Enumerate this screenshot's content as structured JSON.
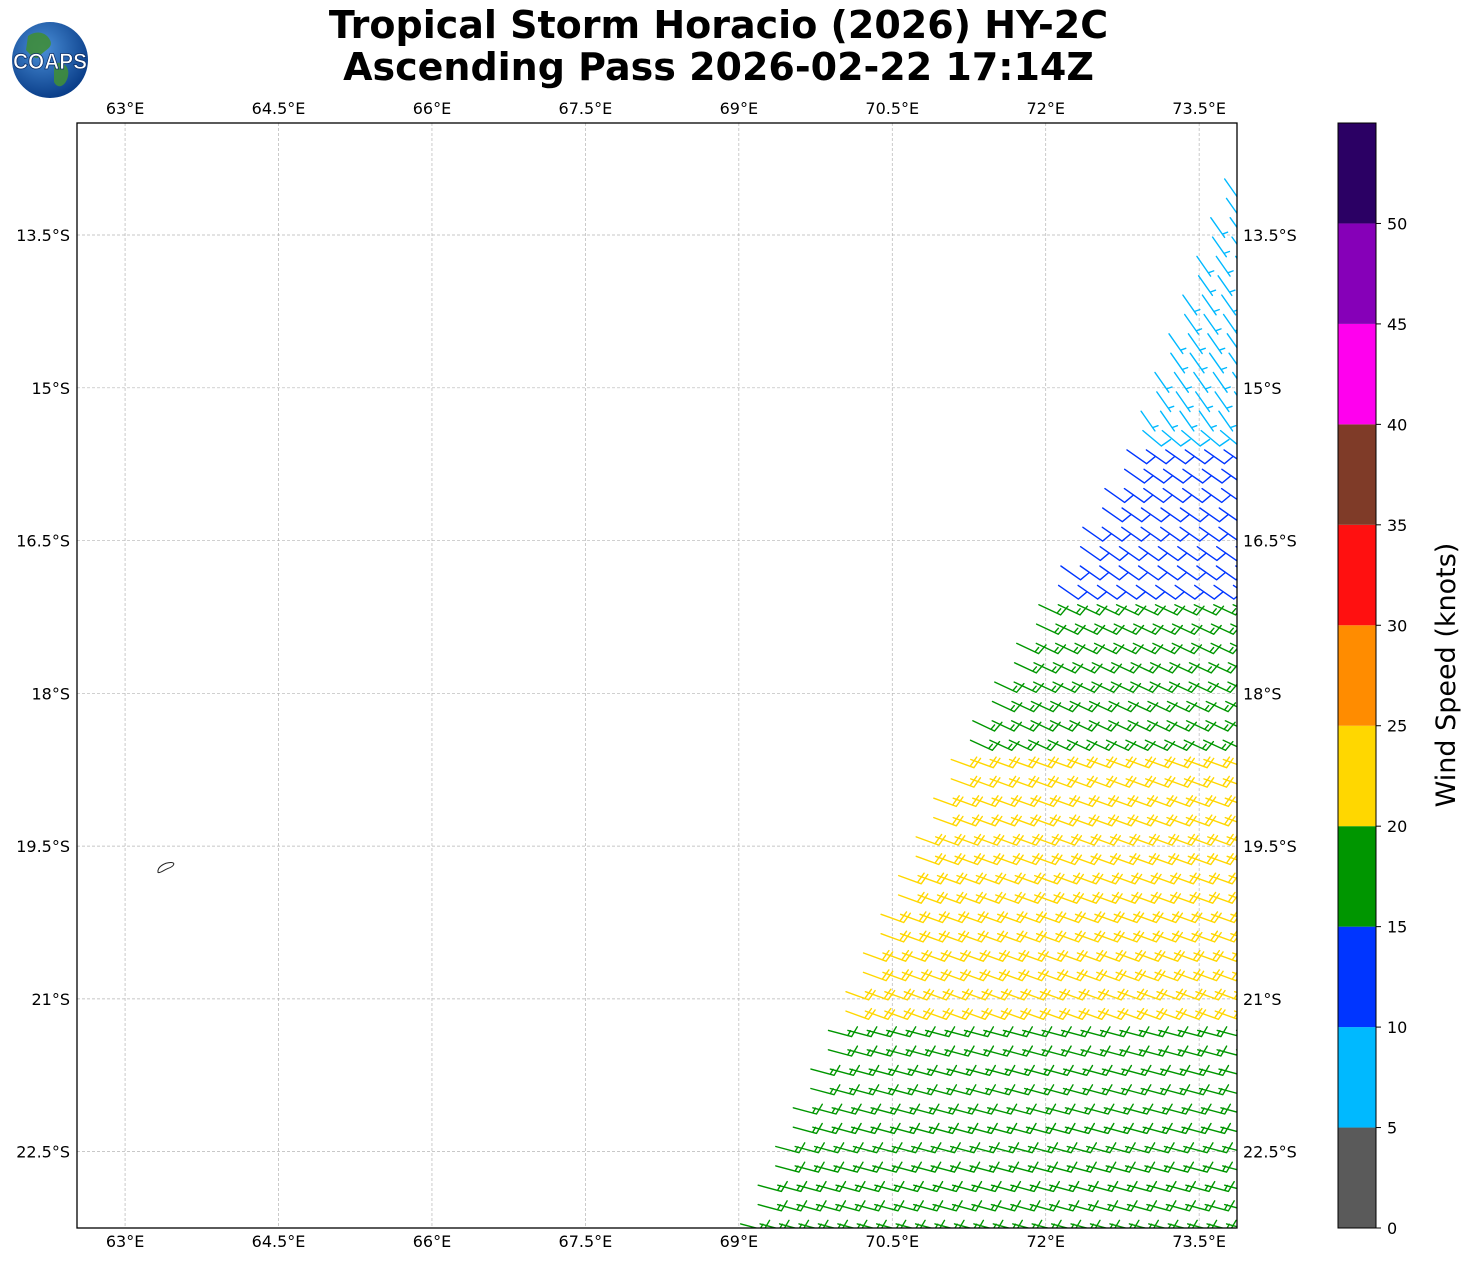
{
  "title": {
    "line1": "Tropical Storm Horacio (2026) HY-2C",
    "line2": "Ascending Pass 2026-02-22 17:14Z"
  },
  "logo": {
    "text": "COAPS",
    "icon": "globe-icon"
  },
  "map": {
    "lon_range": [
      62.53,
      73.87
    ],
    "lat_range": [
      -23.25,
      -12.4
    ],
    "lon_ticks": [
      {
        "value": 63.0,
        "label": "63°E"
      },
      {
        "value": 64.5,
        "label": "64.5°E"
      },
      {
        "value": 66.0,
        "label": "66°E"
      },
      {
        "value": 67.5,
        "label": "67.5°E"
      },
      {
        "value": 69.0,
        "label": "69°E"
      },
      {
        "value": 70.5,
        "label": "70.5°E"
      },
      {
        "value": 72.0,
        "label": "72°E"
      },
      {
        "value": 73.5,
        "label": "73.5°E"
      }
    ],
    "lat_ticks": [
      {
        "value": -13.5,
        "label": "13.5°S"
      },
      {
        "value": -15.0,
        "label": "15°S"
      },
      {
        "value": -16.5,
        "label": "16.5°S"
      },
      {
        "value": -18.0,
        "label": "18°S"
      },
      {
        "value": -19.5,
        "label": "19.5°S"
      },
      {
        "value": -21.0,
        "label": "21°S"
      },
      {
        "value": -22.5,
        "label": "22.5°S"
      }
    ],
    "gridlines": true,
    "island": {
      "lon": 63.4,
      "lat": -19.7,
      "name": ""
    }
  },
  "colorbar": {
    "label": "Wind Speed (knots)",
    "levels": [
      {
        "min": 0,
        "max": 5,
        "color": "#5a5a5a"
      },
      {
        "min": 5,
        "max": 10,
        "color": "#00b9ff"
      },
      {
        "min": 10,
        "max": 15,
        "color": "#0035ff"
      },
      {
        "min": 15,
        "max": 20,
        "color": "#009600"
      },
      {
        "min": 20,
        "max": 25,
        "color": "#ffd700"
      },
      {
        "min": 25,
        "max": 30,
        "color": "#ff8c00"
      },
      {
        "min": 30,
        "max": 35,
        "color": "#ff1010"
      },
      {
        "min": 35,
        "max": 40,
        "color": "#7f3b28"
      },
      {
        "min": 40,
        "max": 45,
        "color": "#ff00ee"
      },
      {
        "min": 45,
        "max": 50,
        "color": "#8600b8"
      },
      {
        "min": 50,
        "max": 55,
        "color": "#2b0064"
      }
    ],
    "tick_labels": [
      "0",
      "5",
      "10",
      "15",
      "20",
      "25",
      "30",
      "35",
      "40",
      "45",
      "50"
    ]
  },
  "chart_data": {
    "type": "wind-barb-map",
    "swath": {
      "east_edge_lon": 73.87,
      "west_edge": [
        {
          "lat": -12.95,
          "lon": 73.75
        },
        {
          "lat": -15.6,
          "lon": 72.8
        },
        {
          "lat": -18.6,
          "lon": 71.1
        },
        {
          "lat": -23.25,
          "lon": 69.0
        }
      ],
      "spacing_deg": 0.19
    },
    "wind_regions": [
      {
        "lat_max": -12.6,
        "lat_min": -15.4,
        "speed_kt": 7,
        "direction_from_deg": 145
      },
      {
        "lat_max": -15.4,
        "lat_min": -17.0,
        "speed_kt": 8,
        "direction_from_deg": 130
      },
      {
        "lat_max": -15.6,
        "lat_min": -18.2,
        "speed_kt": 12,
        "direction_from_deg": 125
      },
      {
        "lat_max": -17.0,
        "lat_min": -19.3,
        "speed_kt": 17,
        "direction_from_deg": 115
      },
      {
        "lat_max": -18.6,
        "lat_min": -23.3,
        "speed_kt": 22,
        "direction_from_deg": 110
      },
      {
        "lat_max": -21.2,
        "lat_min": -23.3,
        "speed_kt": 17,
        "direction_from_deg": 105
      }
    ]
  }
}
